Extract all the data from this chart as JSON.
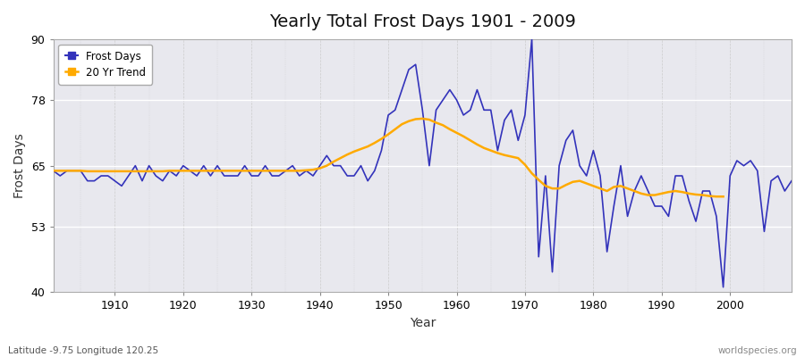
{
  "title": "Yearly Total Frost Days 1901 - 2009",
  "xlabel": "Year",
  "ylabel": "Frost Days",
  "xlim": [
    1901,
    2009
  ],
  "ylim": [
    40,
    90
  ],
  "yticks": [
    40,
    53,
    65,
    78,
    90
  ],
  "xticks": [
    1910,
    1920,
    1930,
    1940,
    1950,
    1960,
    1970,
    1980,
    1990,
    2000
  ],
  "fig_bg_color": "#ffffff",
  "plot_bg_color": "#e8e8ee",
  "line_color": "#3333bb",
  "trend_color": "#ffaa00",
  "footer_left": "Latitude -9.75 Longitude 120.25",
  "footer_right": "worldspecies.org",
  "legend_labels": [
    "Frost Days",
    "20 Yr Trend"
  ],
  "years": [
    1901,
    1902,
    1903,
    1904,
    1905,
    1906,
    1907,
    1908,
    1909,
    1910,
    1911,
    1912,
    1913,
    1914,
    1915,
    1916,
    1917,
    1918,
    1919,
    1920,
    1921,
    1922,
    1923,
    1924,
    1925,
    1926,
    1927,
    1928,
    1929,
    1930,
    1931,
    1932,
    1933,
    1934,
    1935,
    1936,
    1937,
    1938,
    1939,
    1940,
    1941,
    1942,
    1943,
    1944,
    1945,
    1946,
    1947,
    1948,
    1949,
    1950,
    1951,
    1952,
    1953,
    1954,
    1955,
    1956,
    1957,
    1958,
    1959,
    1960,
    1961,
    1962,
    1963,
    1964,
    1965,
    1966,
    1967,
    1968,
    1969,
    1970,
    1971,
    1972,
    1973,
    1974,
    1975,
    1976,
    1977,
    1978,
    1979,
    1980,
    1981,
    1982,
    1983,
    1984,
    1985,
    1986,
    1987,
    1988,
    1989,
    1990,
    1991,
    1992,
    1993,
    1994,
    1995,
    1996,
    1997,
    1998,
    1999,
    2000,
    2001,
    2002,
    2003,
    2004,
    2005,
    2006,
    2007,
    2008,
    2009
  ],
  "frost_days": [
    64,
    63,
    64,
    64,
    64,
    62,
    62,
    63,
    63,
    62,
    61,
    63,
    65,
    62,
    65,
    63,
    62,
    64,
    63,
    65,
    64,
    63,
    65,
    63,
    65,
    63,
    63,
    63,
    65,
    63,
    63,
    65,
    63,
    63,
    64,
    65,
    63,
    64,
    63,
    65,
    67,
    65,
    65,
    63,
    63,
    65,
    62,
    64,
    68,
    75,
    76,
    80,
    84,
    85,
    76,
    65,
    76,
    78,
    80,
    78,
    75,
    76,
    80,
    76,
    76,
    68,
    74,
    76,
    70,
    75,
    90,
    47,
    63,
    44,
    65,
    70,
    72,
    65,
    63,
    68,
    63,
    48,
    57,
    65,
    55,
    60,
    63,
    60,
    57,
    57,
    55,
    63,
    63,
    58,
    54,
    60,
    60,
    55,
    41,
    63,
    66,
    65,
    66,
    64,
    52,
    62,
    63,
    60,
    62
  ],
  "trend": [
    64.0,
    64.0,
    64.0,
    64.0,
    64.0,
    63.9,
    63.9,
    63.9,
    63.9,
    63.9,
    63.9,
    63.9,
    63.9,
    63.9,
    63.9,
    63.9,
    63.9,
    64.0,
    64.0,
    64.0,
    64.0,
    64.0,
    64.0,
    64.0,
    64.0,
    64.0,
    64.0,
    64.0,
    64.0,
    64.0,
    64.0,
    64.0,
    64.0,
    64.0,
    64.0,
    64.0,
    64.0,
    64.1,
    64.2,
    64.5,
    65.0,
    65.8,
    66.5,
    67.2,
    67.8,
    68.3,
    68.8,
    69.5,
    70.3,
    71.2,
    72.2,
    73.2,
    73.8,
    74.2,
    74.3,
    74.1,
    73.5,
    73.0,
    72.2,
    71.5,
    70.8,
    70.0,
    69.2,
    68.5,
    68.0,
    67.5,
    67.1,
    66.8,
    66.5,
    65.2,
    63.5,
    62.2,
    61.0,
    60.5,
    60.5,
    61.2,
    61.8,
    62.0,
    61.5,
    61.0,
    60.5,
    60.0,
    60.8,
    61.0,
    60.5,
    60.0,
    59.5,
    59.2,
    59.2,
    59.5,
    59.8,
    60.0,
    59.8,
    59.5,
    59.3,
    59.2,
    59.0,
    58.9,
    58.9
  ]
}
